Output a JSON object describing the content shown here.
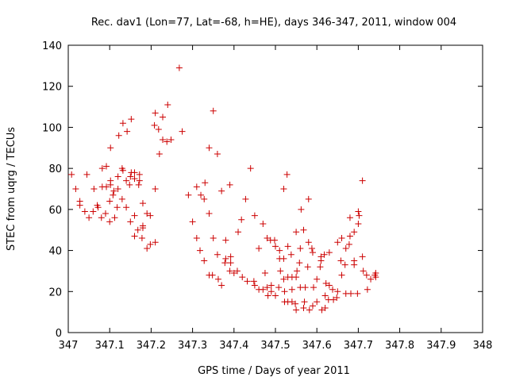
{
  "chart_data": {
    "type": "scatter",
    "title": "Rec. dav1 (Lon=77, Lat=-68, h=HE), days 346-347, 2011, window 004",
    "xlabel": "GPS time / Days of year 2011",
    "ylabel": "STEC from uqrg / TECUs",
    "xlim": [
      347,
      348
    ],
    "ylim": [
      0,
      140
    ],
    "xticks": [
      "347",
      "347.1",
      "347.2",
      "347.3",
      "347.4",
      "347.5",
      "347.6",
      "347.7",
      "347.8",
      "347.9",
      "348"
    ],
    "yticks": [
      "0",
      "20",
      "40",
      "60",
      "80",
      "100",
      "120",
      "140"
    ],
    "grid": false,
    "marker": "+",
    "color": "#cc0000",
    "series": [
      {
        "name": "",
        "points": [
          [
            347.008,
            77
          ],
          [
            347.018,
            70
          ],
          [
            347.028,
            64
          ],
          [
            347.028,
            62
          ],
          [
            347.04,
            59
          ],
          [
            347.05,
            56
          ],
          [
            347.045,
            77
          ],
          [
            347.06,
            59
          ],
          [
            347.062,
            70
          ],
          [
            347.07,
            62
          ],
          [
            347.072,
            61
          ],
          [
            347.08,
            56
          ],
          [
            347.082,
            71
          ],
          [
            347.082,
            80
          ],
          [
            347.09,
            58
          ],
          [
            347.092,
            71
          ],
          [
            347.092,
            81
          ],
          [
            347.1,
            54
          ],
          [
            347.1,
            64
          ],
          [
            347.102,
            90
          ],
          [
            347.102,
            72
          ],
          [
            347.102,
            74
          ],
          [
            347.108,
            67
          ],
          [
            347.11,
            69
          ],
          [
            347.112,
            56
          ],
          [
            347.118,
            61
          ],
          [
            347.12,
            70
          ],
          [
            347.12,
            76
          ],
          [
            347.122,
            96
          ],
          [
            347.13,
            65
          ],
          [
            347.13,
            80
          ],
          [
            347.132,
            79
          ],
          [
            347.132,
            102
          ],
          [
            347.14,
            74
          ],
          [
            347.14,
            61
          ],
          [
            347.142,
            98
          ],
          [
            347.148,
            72
          ],
          [
            347.15,
            54
          ],
          [
            347.15,
            76
          ],
          [
            347.152,
            78
          ],
          [
            347.152,
            104
          ],
          [
            347.16,
            75
          ],
          [
            347.16,
            78
          ],
          [
            347.16,
            57
          ],
          [
            347.16,
            47
          ],
          [
            347.168,
            50
          ],
          [
            347.17,
            72
          ],
          [
            347.172,
            77
          ],
          [
            347.172,
            74
          ],
          [
            347.178,
            46
          ],
          [
            347.18,
            51
          ],
          [
            347.18,
            63
          ],
          [
            347.18,
            52
          ],
          [
            347.19,
            41
          ],
          [
            347.19,
            58
          ],
          [
            347.198,
            57
          ],
          [
            347.198,
            43
          ],
          [
            347.21,
            70
          ],
          [
            347.21,
            107
          ],
          [
            347.208,
            101
          ],
          [
            347.21,
            44
          ],
          [
            347.218,
            99
          ],
          [
            347.22,
            87
          ],
          [
            347.228,
            105
          ],
          [
            347.228,
            94
          ],
          [
            347.238,
            93
          ],
          [
            347.24,
            111
          ],
          [
            347.248,
            94
          ],
          [
            347.268,
            129
          ],
          [
            347.275,
            98
          ],
          [
            347.29,
            67
          ],
          [
            347.3,
            54
          ],
          [
            347.31,
            46
          ],
          [
            347.31,
            71
          ],
          [
            347.318,
            40
          ],
          [
            347.32,
            67
          ],
          [
            347.328,
            65
          ],
          [
            347.328,
            35
          ],
          [
            347.33,
            73
          ],
          [
            347.34,
            58
          ],
          [
            347.34,
            90
          ],
          [
            347.34,
            28
          ],
          [
            347.348,
            28
          ],
          [
            347.35,
            46
          ],
          [
            347.35,
            108
          ],
          [
            347.36,
            38
          ],
          [
            347.36,
            87
          ],
          [
            347.362,
            26
          ],
          [
            347.37,
            69
          ],
          [
            347.37,
            23
          ],
          [
            347.378,
            34
          ],
          [
            347.38,
            36
          ],
          [
            347.38,
            45
          ],
          [
            347.39,
            30
          ],
          [
            347.39,
            72
          ],
          [
            347.392,
            37
          ],
          [
            347.392,
            34
          ],
          [
            347.4,
            29
          ],
          [
            347.408,
            30
          ],
          [
            347.41,
            49
          ],
          [
            347.418,
            55
          ],
          [
            347.42,
            27
          ],
          [
            347.428,
            65
          ],
          [
            347.432,
            25
          ],
          [
            347.44,
            80
          ],
          [
            347.448,
            25
          ],
          [
            347.45,
            57
          ],
          [
            347.45,
            23
          ],
          [
            347.46,
            41
          ],
          [
            347.46,
            21
          ],
          [
            347.47,
            53
          ],
          [
            347.47,
            21
          ],
          [
            347.475,
            29
          ],
          [
            347.48,
            46
          ],
          [
            347.48,
            22
          ],
          [
            347.482,
            18
          ],
          [
            347.488,
            45
          ],
          [
            347.49,
            23
          ],
          [
            347.49,
            20
          ],
          [
            347.498,
            45
          ],
          [
            347.5,
            18
          ],
          [
            347.5,
            42
          ],
          [
            347.508,
            22
          ],
          [
            347.51,
            40
          ],
          [
            347.51,
            36
          ],
          [
            347.512,
            30
          ],
          [
            347.52,
            70
          ],
          [
            347.52,
            36
          ],
          [
            347.52,
            26
          ],
          [
            347.522,
            15
          ],
          [
            347.522,
            20
          ],
          [
            347.528,
            77
          ],
          [
            347.53,
            42
          ],
          [
            347.53,
            27
          ],
          [
            347.53,
            15
          ],
          [
            347.538,
            38
          ],
          [
            347.54,
            27
          ],
          [
            347.54,
            21
          ],
          [
            347.54,
            15
          ],
          [
            347.548,
            14
          ],
          [
            347.55,
            49
          ],
          [
            347.55,
            27
          ],
          [
            347.55,
            11
          ],
          [
            347.552,
            30
          ],
          [
            347.558,
            34
          ],
          [
            347.56,
            22
          ],
          [
            347.56,
            41
          ],
          [
            347.562,
            60
          ],
          [
            347.568,
            12
          ],
          [
            347.568,
            50
          ],
          [
            347.57,
            15
          ],
          [
            347.572,
            22
          ],
          [
            347.578,
            32
          ],
          [
            347.58,
            65
          ],
          [
            347.58,
            44
          ],
          [
            347.582,
            11
          ],
          [
            347.588,
            41
          ],
          [
            347.59,
            13
          ],
          [
            347.59,
            39
          ],
          [
            347.592,
            22
          ],
          [
            347.6,
            15
          ],
          [
            347.6,
            26
          ],
          [
            347.608,
            32
          ],
          [
            347.61,
            37
          ],
          [
            347.61,
            35
          ],
          [
            347.612,
            11
          ],
          [
            347.618,
            38
          ],
          [
            347.62,
            12
          ],
          [
            347.62,
            18
          ],
          [
            347.622,
            24
          ],
          [
            347.628,
            16
          ],
          [
            347.63,
            39
          ],
          [
            347.63,
            23
          ],
          [
            347.638,
            21
          ],
          [
            347.64,
            16
          ],
          [
            347.648,
            17
          ],
          [
            347.65,
            44
          ],
          [
            347.65,
            20
          ],
          [
            347.658,
            35
          ],
          [
            347.66,
            28
          ],
          [
            347.66,
            46
          ],
          [
            347.668,
            33
          ],
          [
            347.67,
            19
          ],
          [
            347.67,
            41
          ],
          [
            347.678,
            43
          ],
          [
            347.68,
            47
          ],
          [
            347.68,
            56
          ],
          [
            347.682,
            19
          ],
          [
            347.69,
            35
          ],
          [
            347.69,
            49
          ],
          [
            347.69,
            33
          ],
          [
            347.698,
            19
          ],
          [
            347.7,
            59
          ],
          [
            347.7,
            53
          ],
          [
            347.702,
            57
          ],
          [
            347.71,
            74
          ],
          [
            347.71,
            37
          ],
          [
            347.712,
            30
          ],
          [
            347.72,
            28
          ],
          [
            347.722,
            21
          ],
          [
            347.73,
            26
          ],
          [
            347.74,
            28
          ],
          [
            347.742,
            29
          ],
          [
            347.742,
            27
          ]
        ]
      }
    ]
  }
}
